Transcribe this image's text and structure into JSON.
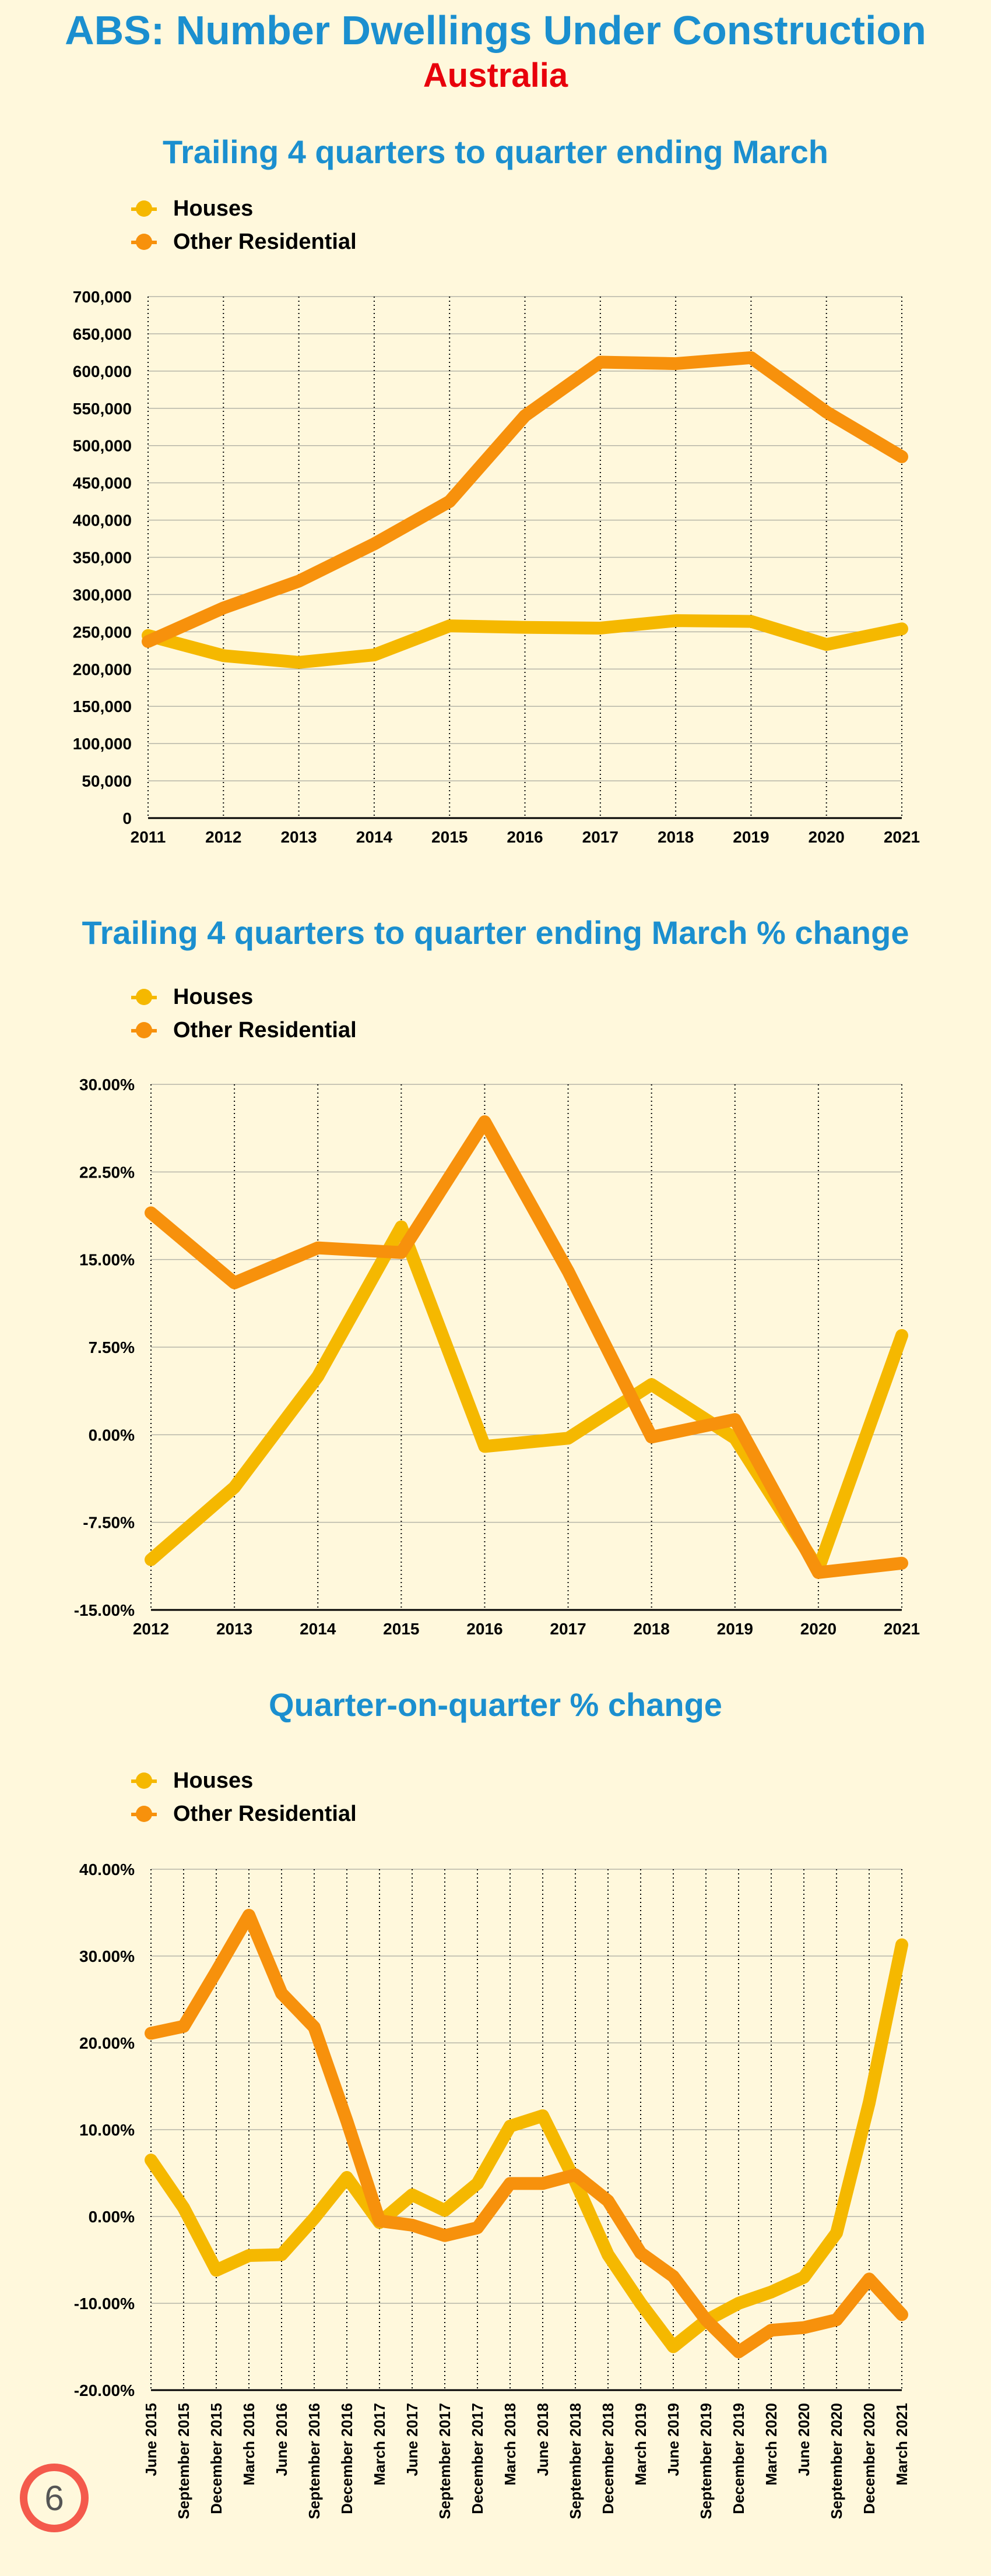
{
  "header": {
    "title": "ABS: Number Dwellings Under Construction",
    "subtitle": "Australia"
  },
  "colors": {
    "houses": "#f5b800",
    "other": "#f7910c",
    "title": "#1b8fcf",
    "subtitle": "#e8000b"
  },
  "page_number": "6",
  "chart_data": [
    {
      "type": "line",
      "title": "Trailing 4 quarters to quarter ending March",
      "xlabel": "",
      "ylabel": "",
      "categories": [
        "2011",
        "2012",
        "2013",
        "2014",
        "2015",
        "2016",
        "2017",
        "2018",
        "2019",
        "2020",
        "2021"
      ],
      "yticks": [
        "0",
        "50,000",
        "100,000",
        "150,000",
        "200,000",
        "250,000",
        "300,000",
        "350,000",
        "400,000",
        "450,000",
        "500,000",
        "550,000",
        "600,000",
        "650,000",
        "700,000"
      ],
      "ylim": [
        0,
        700000
      ],
      "legend": "top-left",
      "grid": true,
      "series": [
        {
          "name": "Houses",
          "values": [
            245000,
            218000,
            209000,
            219000,
            258000,
            256000,
            255000,
            265000,
            264000,
            233000,
            254000
          ]
        },
        {
          "name": "Other Residential",
          "values": [
            237000,
            282000,
            318000,
            368000,
            425000,
            540000,
            612000,
            610000,
            618000,
            545000,
            485000
          ]
        }
      ]
    },
    {
      "type": "line",
      "title": "Trailing 4 quarters to quarter ending March % change",
      "xlabel": "",
      "ylabel": "",
      "categories": [
        "2012",
        "2013",
        "2014",
        "2015",
        "2016",
        "2017",
        "2018",
        "2019",
        "2020",
        "2021"
      ],
      "yticks": [
        "-15.00%",
        "-7.50%",
        "0.00%",
        "7.50%",
        "15.00%",
        "22.50%",
        "30.00%"
      ],
      "ylim": [
        -15,
        30
      ],
      "legend": "top-left",
      "grid": true,
      "series": [
        {
          "name": "Houses",
          "values": [
            -10.7,
            -4.5,
            5.0,
            17.8,
            -1.0,
            -0.3,
            4.3,
            -0.3,
            -11.5,
            8.5
          ]
        },
        {
          "name": "Other Residential",
          "values": [
            19.0,
            13.0,
            16.0,
            15.6,
            26.8,
            14.0,
            -0.2,
            1.3,
            -11.8,
            -11.0
          ]
        }
      ]
    },
    {
      "type": "line",
      "title": "Quarter-on-quarter % change",
      "xlabel": "",
      "ylabel": "",
      "categories": [
        "June 2015",
        "September 2015",
        "December 2015",
        "March 2016",
        "June 2016",
        "September 2016",
        "December 2016",
        "March 2017",
        "June 2017",
        "September 2017",
        "December 2017",
        "March 2018",
        "June 2018",
        "September 2018",
        "December 2018",
        "March 2019",
        "June 2019",
        "September 2019",
        "December 2019",
        "March 2020",
        "June 2020",
        "September 2020",
        "December 2020",
        "March 2021"
      ],
      "yticks": [
        "-20.00%",
        "-10.00%",
        "0.00%",
        "10.00%",
        "20.00%",
        "30.00%",
        "40.00%"
      ],
      "ylim": [
        -20,
        40
      ],
      "legend": "top-left",
      "grid": true,
      "series": [
        {
          "name": "Houses",
          "values": [
            6.5,
            1.0,
            -6.2,
            -4.5,
            -4.4,
            -0.2,
            4.5,
            -0.7,
            2.5,
            0.7,
            3.8,
            10.4,
            11.6,
            4.0,
            -4.4,
            -10.0,
            -15.0,
            -12.0,
            -10.0,
            -8.7,
            -7.0,
            -1.9,
            13.1,
            31.3
          ]
        },
        {
          "name": "Other Residential",
          "values": [
            21.1,
            21.9,
            28.2,
            34.7,
            25.7,
            21.8,
            11.0,
            -0.5,
            -1.0,
            -2.2,
            -1.3,
            3.8,
            3.8,
            4.8,
            1.8,
            -4.2,
            -6.9,
            -11.9,
            -15.6,
            -13.1,
            -12.8,
            -11.9,
            -7.2,
            -11.3
          ]
        }
      ]
    }
  ]
}
